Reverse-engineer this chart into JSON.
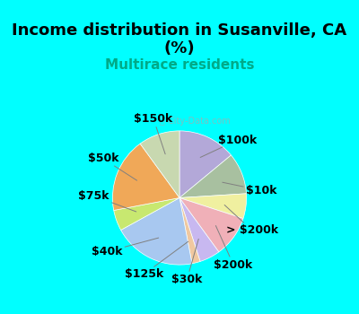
{
  "title": "Income distribution in Susanville, CA\n(%)",
  "subtitle": "Multirace residents",
  "background_color": "#00FFFF",
  "chart_bg_color": "#e8f5e8",
  "watermark": "City-Data.com",
  "slices": [
    {
      "label": "$100k",
      "value": 14,
      "color": "#b3a8d8"
    },
    {
      "label": "$10k",
      "value": 10,
      "color": "#a8c0a0"
    },
    {
      "label": "> $200k",
      "value": 6,
      "color": "#f0f0a0"
    },
    {
      "label": "$200k",
      "value": 10,
      "color": "#f0b0b8"
    },
    {
      "label": "$30k",
      "value": 5,
      "color": "#c8b8f0"
    },
    {
      "label": "$125k",
      "value": 2,
      "color": "#f0c8a0"
    },
    {
      "label": "$40k",
      "value": 20,
      "color": "#a8c8f0"
    },
    {
      "label": "$75k",
      "value": 5,
      "color": "#c8e870"
    },
    {
      "label": "$50k",
      "value": 18,
      "color": "#f0a858"
    },
    {
      "label": "$150k",
      "value": 10,
      "color": "#c8d8b0"
    }
  ],
  "label_fontsize": 9,
  "title_fontsize": 13,
  "subtitle_fontsize": 11,
  "title_color": "#000000",
  "subtitle_color": "#00aa88"
}
